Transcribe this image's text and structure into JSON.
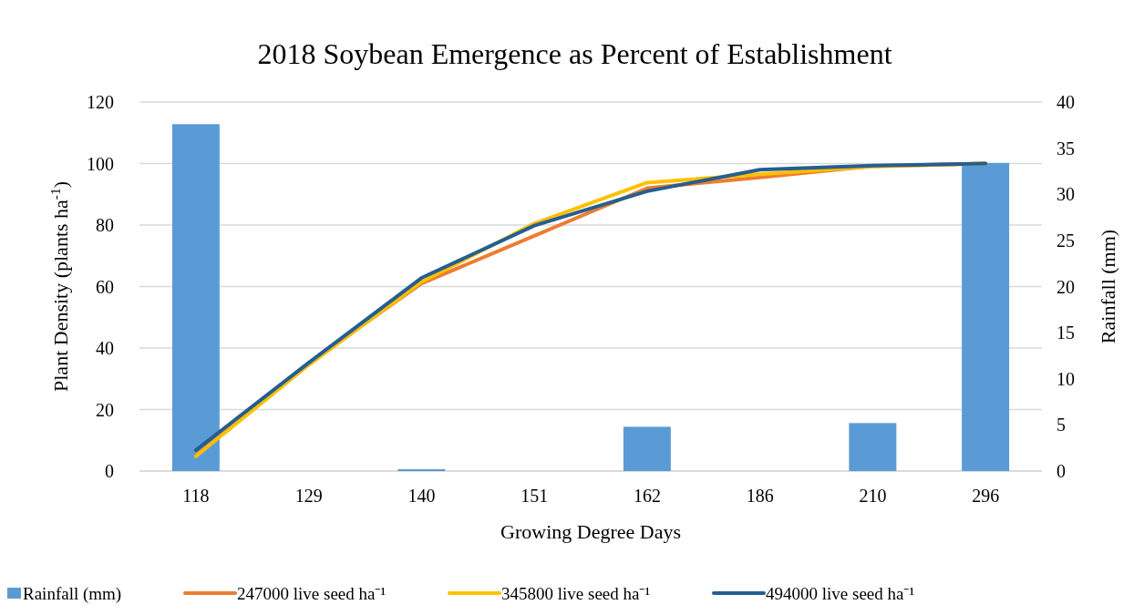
{
  "chart_data": {
    "type": "line",
    "title": "2018 Soybean Emergence as Percent of Establishment",
    "xlabel": "Growing Degree Days",
    "ylabel": "Plant Density (plants ha$^{-1}$)",
    "y2label": "Rainfall (mm)",
    "categories": [
      "118",
      "129",
      "140",
      "151",
      "162",
      "186",
      "210",
      "296"
    ],
    "series": [
      {
        "type": "bar",
        "axis": "y2",
        "name": "Rainfall (mm)",
        "color": "#5b9bd5",
        "values": [
          37.6,
          0,
          0.2,
          0,
          4.8,
          0,
          5.2,
          33.4
        ]
      },
      {
        "name": "247000 live seed ha⁻¹",
        "color": "#ed7d31",
        "values": [
          5,
          35,
          61,
          76.5,
          92,
          95.5,
          99.2,
          100
        ]
      },
      {
        "name": "345800 live seed ha⁻¹",
        "color": "#ffc000",
        "values": [
          4.8,
          34.5,
          61.5,
          80.5,
          93.8,
          96.5,
          99,
          100
        ]
      },
      {
        "name": "494000 live seed ha⁻¹",
        "color": "#255e91",
        "values": [
          6.8,
          35.2,
          62.8,
          79.8,
          91,
          98,
          99.3,
          100
        ]
      }
    ],
    "ylim": [
      0,
      120
    ],
    "yticks": [
      0,
      20,
      40,
      60,
      80,
      100,
      120
    ],
    "y2lim": [
      0,
      40
    ],
    "y2ticks": [
      0,
      5,
      10,
      15,
      20,
      25,
      30,
      35,
      40
    ],
    "grid": "y",
    "legend": "bottom",
    "marker": "none",
    "line_style": "solid"
  }
}
